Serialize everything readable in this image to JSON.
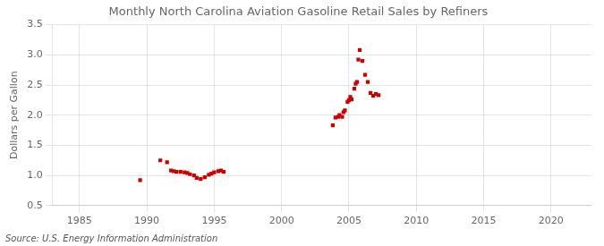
{
  "chart_data": {
    "type": "scatter",
    "title": "Monthly North Carolina Aviation Gasoline Retail Sales by Refiners",
    "ylabel": "Dollars per Gallon",
    "annotation": "Source: U.S. Energy Information Administration",
    "color": "#cc0000",
    "marker": "square",
    "grid": true,
    "xlim": [
      1983,
      2023
    ],
    "ylim": [
      0.5,
      3.5
    ],
    "xticks": [
      1985,
      1990,
      1995,
      2000,
      2005,
      2010,
      2015,
      2020
    ],
    "yticks": [
      0.5,
      {
        "value": 1.0,
        "label": "1.0"
      },
      1.5,
      {
        "value": 2.0,
        "label": "2.0"
      },
      2.5,
      {
        "value": 3.0,
        "label": "3.0"
      },
      3.5
    ],
    "x": [
      1989.5,
      1991.0,
      1991.5,
      1991.8,
      1992.0,
      1992.2,
      1992.5,
      1992.8,
      1993.0,
      1993.2,
      1993.5,
      1993.7,
      1994.0,
      1994.3,
      1994.6,
      1994.8,
      1995.0,
      1995.3,
      1995.5,
      1995.7,
      2003.8,
      2004.0,
      2004.2,
      2004.3,
      2004.5,
      2004.6,
      2004.7,
      2004.9,
      2005.0,
      2005.1,
      2005.2,
      2005.4,
      2005.5,
      2005.6,
      2005.7,
      2005.8,
      2006.0,
      2006.2,
      2006.4,
      2006.6,
      2006.8,
      2007.0,
      2007.2
    ],
    "values": [
      0.92,
      1.25,
      1.22,
      1.08,
      1.07,
      1.06,
      1.06,
      1.05,
      1.04,
      1.02,
      1.0,
      0.96,
      0.94,
      0.97,
      1.01,
      1.03,
      1.05,
      1.07,
      1.08,
      1.06,
      1.83,
      1.96,
      1.97,
      2.0,
      1.97,
      2.05,
      2.08,
      2.22,
      2.25,
      2.3,
      2.26,
      2.44,
      2.52,
      2.55,
      2.92,
      3.08,
      2.9,
      2.67,
      2.55,
      2.37,
      2.32,
      2.35,
      2.33
    ]
  }
}
